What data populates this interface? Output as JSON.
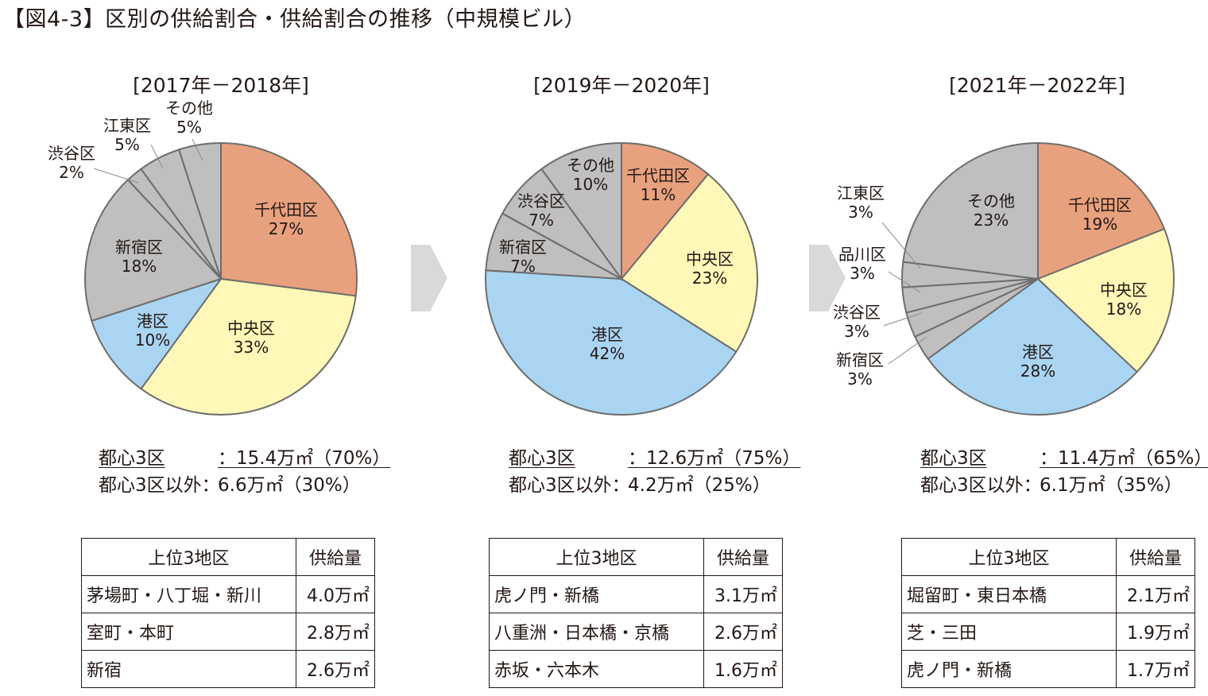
{
  "title": "【図4-3】区別の供給割合・供給割合の推移（中規模ビル）",
  "colors": {
    "chiyoda": "#E8A17E",
    "chuo": "#FFF8B8",
    "minato": "#A9D5F2",
    "other": "#BFBFBF",
    "stroke": "#6D6D6D",
    "arrow": "#D9D9D9"
  },
  "icons": [
    "right-arrow-icon"
  ],
  "chart_data": [
    {
      "type": "pie",
      "title": "[2017年－2018年]",
      "slices": [
        {
          "name": "千代田区",
          "value": 27,
          "label": "27%",
          "color": "#E8A17E"
        },
        {
          "name": "中央区",
          "value": 33,
          "label": "33%",
          "color": "#FFF8B8"
        },
        {
          "name": "港区",
          "value": 10,
          "label": "10%",
          "color": "#A9D5F2"
        },
        {
          "name": "新宿区",
          "value": 18,
          "label": "18%",
          "color": "#BFBFBF"
        },
        {
          "name": "渋谷区",
          "value": 2,
          "label": "2%",
          "color": "#BFBFBF"
        },
        {
          "name": "江東区",
          "value": 5,
          "label": "5%",
          "color": "#BFBFBF"
        },
        {
          "name": "その他",
          "value": 5,
          "label": "5%",
          "color": "#BFBFBF"
        }
      ]
    },
    {
      "type": "pie",
      "title": "[2019年－2020年]",
      "slices": [
        {
          "name": "千代田区",
          "value": 11,
          "label": "11%",
          "color": "#E8A17E"
        },
        {
          "name": "中央区",
          "value": 23,
          "label": "23%",
          "color": "#FFF8B8"
        },
        {
          "name": "港区",
          "value": 42,
          "label": "42%",
          "color": "#A9D5F2"
        },
        {
          "name": "新宿区",
          "value": 7,
          "label": "7%",
          "color": "#BFBFBF"
        },
        {
          "name": "渋谷区",
          "value": 7,
          "label": "7%",
          "color": "#BFBFBF"
        },
        {
          "name": "その他",
          "value": 10,
          "label": "10%",
          "color": "#BFBFBF"
        }
      ]
    },
    {
      "type": "pie",
      "title": "[2021年－2022年]",
      "slices": [
        {
          "name": "千代田区",
          "value": 19,
          "label": "19%",
          "color": "#E8A17E"
        },
        {
          "name": "中央区",
          "value": 18,
          "label": "18%",
          "color": "#FFF8B8"
        },
        {
          "name": "港区",
          "value": 28,
          "label": "28%",
          "color": "#A9D5F2"
        },
        {
          "name": "新宿区",
          "value": 3,
          "label": "3%",
          "color": "#BFBFBF"
        },
        {
          "name": "渋谷区",
          "value": 3,
          "label": "3%",
          "color": "#BFBFBF"
        },
        {
          "name": "品川区",
          "value": 3,
          "label": "3%",
          "color": "#BFBFBF"
        },
        {
          "name": "江東区",
          "value": 3,
          "label": "3%",
          "color": "#BFBFBF"
        },
        {
          "name": "その他",
          "value": 23,
          "label": "23%",
          "color": "#BFBFBF"
        }
      ]
    }
  ],
  "periods": [
    {
      "label": "[2017年－2018年]",
      "summary": [
        {
          "label": "都心3区",
          "value": "：15.4万㎡（70%）"
        },
        {
          "label": "都心3区以外：",
          "value": "6.6万㎡（30%）"
        }
      ],
      "table": {
        "headers": [
          "上位3地区",
          "供給量"
        ],
        "rows": [
          [
            "茅場町・八丁堀・新川",
            "4.0万㎡"
          ],
          [
            "室町・本町",
            "2.8万㎡"
          ],
          [
            "新宿",
            "2.6万㎡"
          ]
        ]
      }
    },
    {
      "label": "[2019年－2020年]",
      "summary": [
        {
          "label": "都心3区",
          "value": "：12.6万㎡（75%）"
        },
        {
          "label": "都心3区以外：",
          "value": "4.2万㎡（25%）"
        }
      ],
      "table": {
        "headers": [
          "上位3地区",
          "供給量"
        ],
        "rows": [
          [
            "虎ノ門・新橋",
            "3.1万㎡"
          ],
          [
            "八重洲・日本橋・京橋",
            "2.6万㎡"
          ],
          [
            "赤坂・六本木",
            "1.6万㎡"
          ]
        ]
      }
    },
    {
      "label": "[2021年－2022年]",
      "summary": [
        {
          "label": "都心3区",
          "value": "：11.4万㎡（65%）"
        },
        {
          "label": "都心3区以外：",
          "value": "6.1万㎡（35%）"
        }
      ],
      "table": {
        "headers": [
          "上位3地区",
          "供給量"
        ],
        "rows": [
          [
            "堀留町・東日本橋",
            "2.1万㎡"
          ],
          [
            "芝・三田",
            "1.9万㎡"
          ],
          [
            "虎ノ門・新橋",
            "1.7万㎡"
          ]
        ]
      }
    }
  ]
}
